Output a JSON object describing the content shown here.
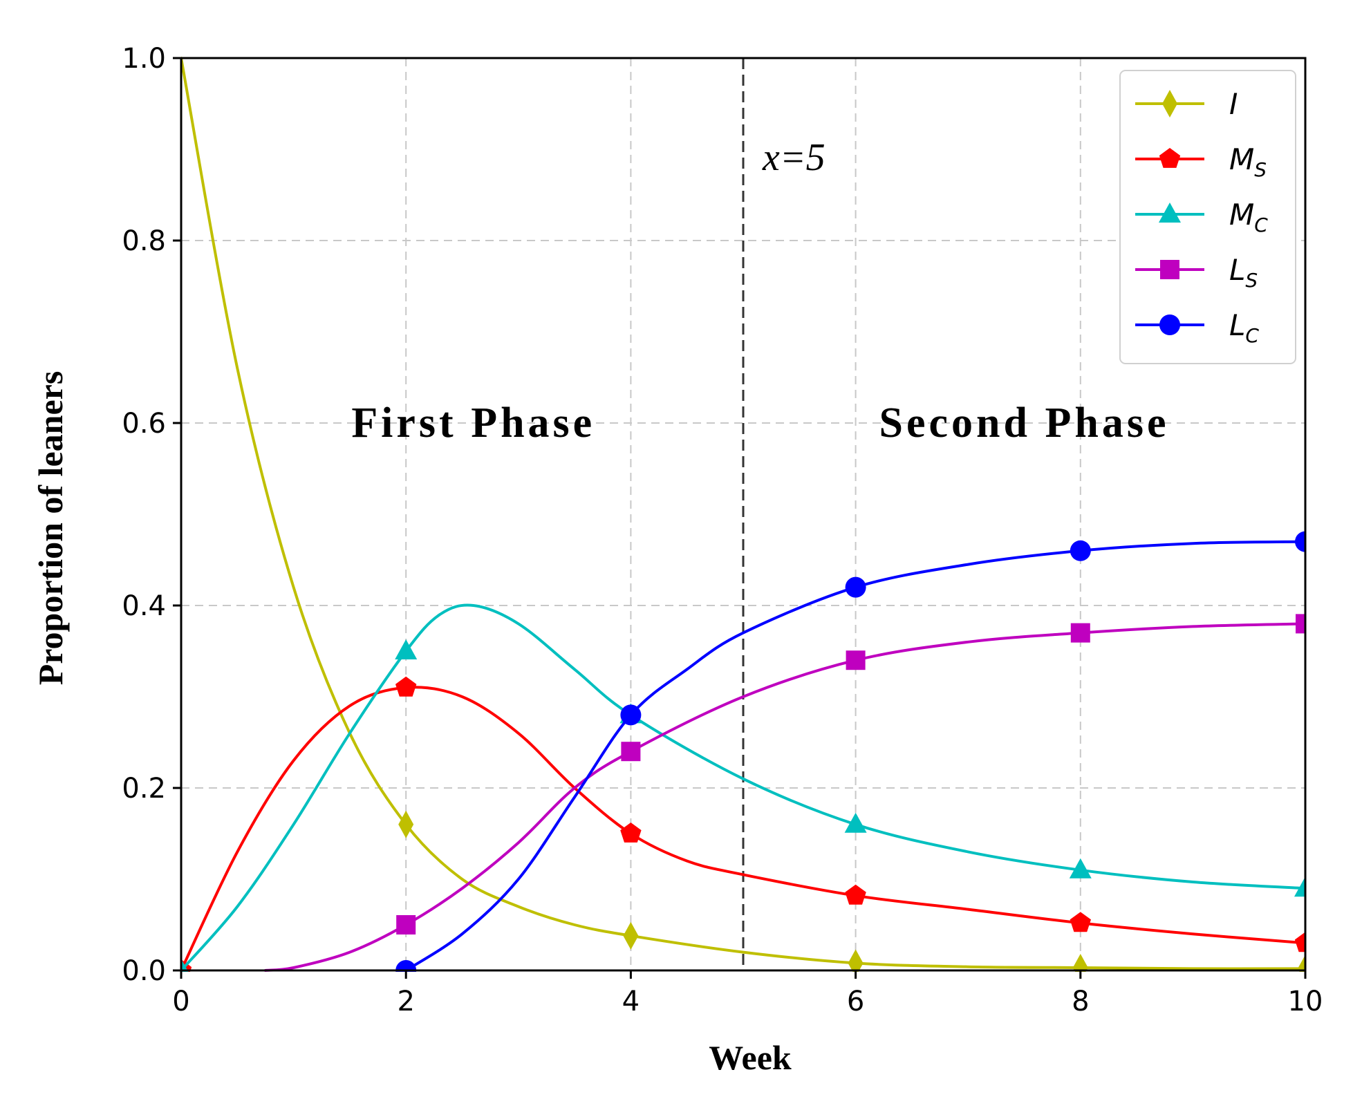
{
  "chart_data": {
    "type": "line",
    "xlabel": "Week",
    "ylabel": "Proportion of leaners",
    "xlim": [
      0,
      10
    ],
    "ylim": [
      0,
      1.0
    ],
    "xticks": [
      "0",
      "2",
      "4",
      "6",
      "8",
      "10"
    ],
    "xtick_values": [
      0,
      2,
      4,
      6,
      8,
      10
    ],
    "yticks": [
      "0.0",
      "0.2",
      "0.4",
      "0.6",
      "0.8",
      "1.0"
    ],
    "ytick_values": [
      0,
      0.2,
      0.4,
      0.6,
      0.8,
      1.0
    ],
    "grid": true,
    "legend_position": "top-right",
    "vline": {
      "x": 5,
      "label": "x=5"
    },
    "phases": [
      {
        "label": "First Phase",
        "x": 2.6,
        "y": 0.6
      },
      {
        "label": "Second Phase",
        "x": 7.5,
        "y": 0.6
      }
    ],
    "series": [
      {
        "name": "I",
        "main": "I",
        "sub": "",
        "color": "#bfbf00",
        "marker": "diamond",
        "x": [
          0,
          0.5,
          1,
          1.5,
          2,
          2.5,
          3,
          3.5,
          4,
          5,
          6,
          7,
          8,
          9,
          10
        ],
        "y": [
          1.0,
          0.66,
          0.42,
          0.26,
          0.16,
          0.1,
          0.07,
          0.05,
          0.038,
          0.02,
          0.008,
          0.004,
          0.003,
          0.002,
          0.002
        ],
        "markers_x": [
          2,
          4,
          6,
          8,
          10
        ],
        "markers_y": [
          0.16,
          0.038,
          0.008,
          0.003,
          0.002
        ]
      },
      {
        "name": "MS",
        "main": "M",
        "sub": "S",
        "color": "#ff0000",
        "marker": "pentagon",
        "x": [
          0,
          0.5,
          1,
          1.5,
          2,
          2.5,
          3,
          3.5,
          4,
          4.5,
          5,
          6,
          7,
          8,
          9,
          10
        ],
        "y": [
          0.0,
          0.13,
          0.23,
          0.29,
          0.31,
          0.3,
          0.26,
          0.2,
          0.15,
          0.12,
          0.105,
          0.082,
          0.067,
          0.052,
          0.04,
          0.03
        ],
        "markers_x": [
          0,
          2,
          4,
          6,
          8,
          10
        ],
        "markers_y": [
          0.0,
          0.31,
          0.15,
          0.082,
          0.052,
          0.03
        ]
      },
      {
        "name": "MC",
        "main": "M",
        "sub": "C",
        "color": "#00bfbf",
        "marker": "triangle",
        "x": [
          0,
          0.5,
          1,
          1.5,
          2,
          2.3,
          2.6,
          3,
          3.5,
          4,
          5,
          6,
          7,
          8,
          9,
          10
        ],
        "y": [
          0.0,
          0.07,
          0.16,
          0.26,
          0.35,
          0.39,
          0.4,
          0.38,
          0.33,
          0.28,
          0.21,
          0.16,
          0.13,
          0.11,
          0.097,
          0.09
        ],
        "markers_x": [
          0,
          2,
          4,
          6,
          8,
          10
        ],
        "markers_y": [
          0.0,
          0.35,
          0.28,
          0.16,
          0.11,
          0.09
        ]
      },
      {
        "name": "LS",
        "main": "L",
        "sub": "S",
        "color": "#bf00bf",
        "marker": "square",
        "x": [
          0.75,
          1,
          1.5,
          2,
          2.5,
          3,
          3.5,
          4,
          5,
          6,
          7,
          8,
          9,
          10
        ],
        "y": [
          0.0,
          0.003,
          0.02,
          0.05,
          0.09,
          0.14,
          0.2,
          0.24,
          0.3,
          0.34,
          0.36,
          0.37,
          0.377,
          0.38
        ],
        "markers_x": [
          2,
          4,
          6,
          8,
          10
        ],
        "markers_y": [
          0.05,
          0.24,
          0.34,
          0.37,
          0.38
        ]
      },
      {
        "name": "LC",
        "main": "L",
        "sub": "C",
        "color": "#0000ff",
        "marker": "circle",
        "x": [
          2,
          2.5,
          3,
          3.5,
          4,
          4.5,
          5,
          6,
          7,
          8,
          9,
          10
        ],
        "y": [
          0.0,
          0.04,
          0.1,
          0.19,
          0.28,
          0.33,
          0.37,
          0.42,
          0.445,
          0.46,
          0.468,
          0.47
        ],
        "markers_x": [
          2,
          4,
          6,
          8,
          10
        ],
        "markers_y": [
          0.0,
          0.28,
          0.42,
          0.46,
          0.47
        ]
      }
    ]
  }
}
